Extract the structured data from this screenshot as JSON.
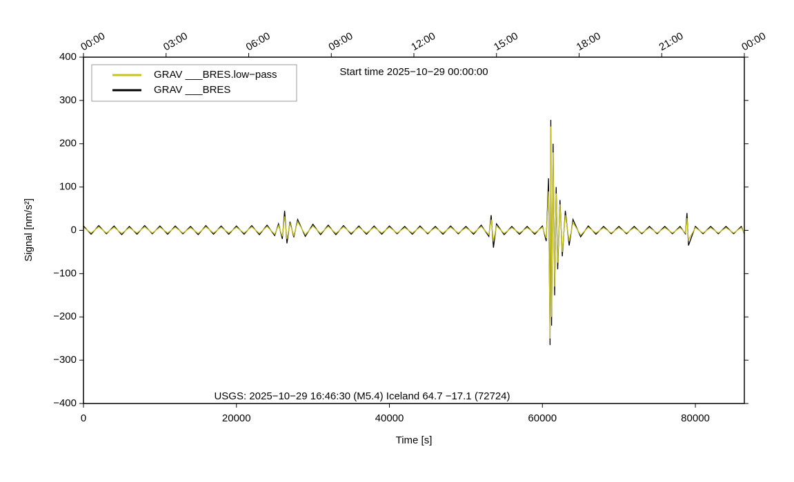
{
  "chart_data": {
    "type": "line",
    "title": "Start time 2025−10−29 00:00:00",
    "annotation": "USGS: 2025−10−29 16:46:30 (M5.4) Iceland 64.7 −17.1 (72724)",
    "x_label": "Time [s]",
    "y_label": "Signal [nm/s²]",
    "xlim": [
      0,
      86400
    ],
    "xticks": [
      0,
      20000,
      40000,
      60000,
      80000
    ],
    "x2ticks": [
      {
        "value": 0,
        "label": "00:00"
      },
      {
        "value": 10800,
        "label": "03:00"
      },
      {
        "value": 21600,
        "label": "06:00"
      },
      {
        "value": 32400,
        "label": "09:00"
      },
      {
        "value": 43200,
        "label": "12:00"
      },
      {
        "value": 54000,
        "label": "15:00"
      },
      {
        "value": 64800,
        "label": "18:00"
      },
      {
        "value": 75600,
        "label": "21:00"
      },
      {
        "value": 86400,
        "label": "00:00"
      }
    ],
    "ylim": [
      -400,
      400
    ],
    "yticks": [
      {
        "value": -400,
        "label": "−400"
      },
      {
        "value": -300,
        "label": "−300"
      },
      {
        "value": -200,
        "label": "−200"
      },
      {
        "value": -100,
        "label": "−100"
      },
      0,
      100,
      200,
      300,
      400
    ],
    "legend": "upper left",
    "x": [
      0,
      1000,
      2000,
      3000,
      4000,
      5000,
      6000,
      7000,
      8000,
      9000,
      10000,
      11000,
      12000,
      13000,
      14000,
      15000,
      16000,
      17000,
      18000,
      19000,
      20000,
      21000,
      22000,
      23000,
      24000,
      25000,
      25500,
      26000,
      26300,
      26600,
      27000,
      27500,
      28000,
      29000,
      30000,
      31000,
      32000,
      33000,
      34000,
      35000,
      36000,
      37000,
      38000,
      39000,
      40000,
      41000,
      42000,
      43000,
      44000,
      45000,
      46000,
      47000,
      48000,
      49000,
      50000,
      51000,
      52000,
      53000,
      53300,
      53600,
      54000,
      55000,
      56000,
      57000,
      58000,
      59000,
      60000,
      60500,
      60800,
      61000,
      61100,
      61200,
      61400,
      61600,
      61800,
      62000,
      62300,
      62600,
      63000,
      63500,
      64000,
      65000,
      66000,
      67000,
      68000,
      69000,
      70000,
      71000,
      72000,
      73000,
      74000,
      75000,
      76000,
      77000,
      78000,
      78700,
      78900,
      79100,
      80000,
      81000,
      82000,
      83000,
      84000,
      85000,
      86000,
      86400
    ],
    "series": [
      {
        "name": "GRAV ___BRES.low−pass",
        "color": "#c9c31c",
        "values": [
          7,
          -6,
          8,
          -6,
          7,
          -7,
          6,
          -6,
          8,
          -6,
          7,
          -6,
          7,
          -6,
          6,
          -7,
          8,
          -6,
          7,
          -6,
          7,
          -6,
          8,
          -7,
          9,
          -9,
          11,
          -14,
          32,
          -20,
          15,
          -12,
          20,
          -10,
          10,
          -7,
          9,
          -7,
          8,
          -6,
          7,
          -6,
          7,
          -6,
          7,
          -6,
          6,
          -6,
          7,
          -6,
          6,
          -6,
          7,
          -6,
          6,
          -6,
          9,
          -10,
          25,
          -25,
          10,
          -7,
          6,
          -6,
          6,
          -6,
          7,
          -18,
          90,
          -250,
          240,
          -200,
          180,
          -130,
          85,
          -75,
          60,
          -50,
          35,
          -25,
          18,
          -11,
          7,
          -6,
          6,
          -6,
          6,
          -6,
          6,
          -6,
          6,
          -6,
          6,
          -6,
          6,
          -6,
          28,
          -22,
          6,
          -6,
          6,
          -6,
          6,
          -6,
          6,
          -6
        ]
      },
      {
        "name": "GRAV ___BRES",
        "color": "#000000",
        "values": [
          10,
          -9,
          11,
          -8,
          10,
          -10,
          9,
          -9,
          11,
          -8,
          10,
          -9,
          10,
          -8,
          9,
          -10,
          11,
          -9,
          10,
          -9,
          10,
          -9,
          11,
          -10,
          12,
          -12,
          15,
          -20,
          45,
          -30,
          20,
          -16,
          25,
          -14,
          14,
          -10,
          12,
          -10,
          11,
          -9,
          10,
          -9,
          10,
          -9,
          10,
          -8,
          9,
          -9,
          10,
          -8,
          9,
          -9,
          10,
          -8,
          9,
          -9,
          12,
          -14,
          35,
          -40,
          15,
          -10,
          9,
          -9,
          9,
          -9,
          10,
          -25,
          120,
          -265,
          255,
          -220,
          200,
          -150,
          100,
          -90,
          70,
          -60,
          45,
          -35,
          25,
          -15,
          10,
          -9,
          9,
          -8,
          9,
          -8,
          9,
          -8,
          9,
          -8,
          9,
          -8,
          9,
          -8,
          40,
          -35,
          9,
          -8,
          9,
          -8,
          9,
          -8,
          9,
          -8
        ]
      }
    ]
  }
}
